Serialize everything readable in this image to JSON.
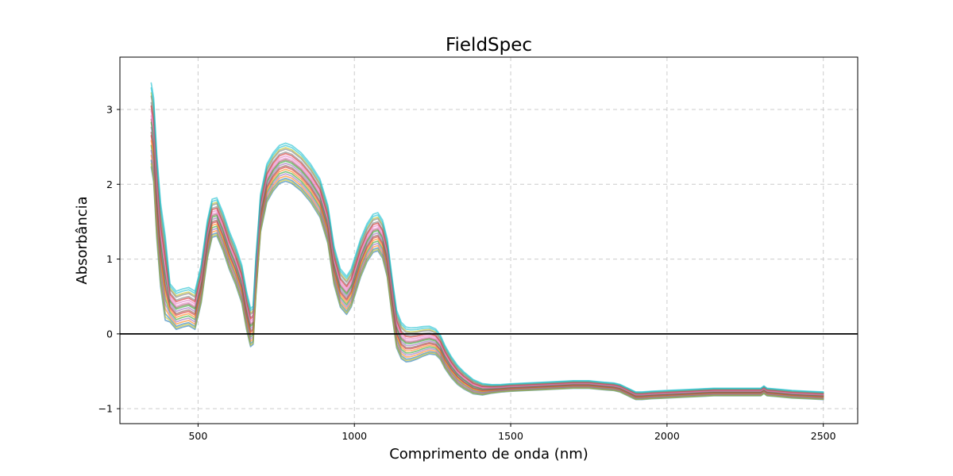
{
  "chart_data": {
    "type": "line",
    "title": "FieldSpec",
    "xlabel": "Comprimento de onda (nm)",
    "ylabel": "Absorbância",
    "xlim": [
      250,
      2610
    ],
    "ylim": [
      -1.2,
      3.7
    ],
    "xticks": [
      500,
      1000,
      1500,
      2000,
      2500
    ],
    "yticks": [
      -1,
      0,
      1,
      2,
      3
    ],
    "xtick_labels": [
      "500",
      "1000",
      "1500",
      "2000",
      "2500"
    ],
    "ytick_labels": [
      "−1",
      "0",
      "1",
      "2",
      "3"
    ],
    "grid": true,
    "reference_line_y": 0,
    "base_profile": {
      "x": [
        350,
        358,
        368,
        380,
        395,
        410,
        430,
        450,
        470,
        490,
        510,
        530,
        545,
        560,
        580,
        600,
        620,
        640,
        655,
        668,
        676,
        685,
        700,
        720,
        740,
        760,
        780,
        800,
        830,
        860,
        890,
        915,
        935,
        955,
        975,
        990,
        1005,
        1020,
        1040,
        1060,
        1075,
        1090,
        1105,
        1120,
        1135,
        1150,
        1165,
        1180,
        1200,
        1220,
        1240,
        1260,
        1275,
        1290,
        1310,
        1330,
        1350,
        1380,
        1410,
        1440,
        1470,
        1500,
        1550,
        1600,
        1650,
        1700,
        1750,
        1800,
        1830,
        1850,
        1870,
        1890,
        1900,
        1920,
        1950,
        2000,
        2050,
        2100,
        2150,
        2200,
        2250,
        2300,
        2310,
        2320,
        2350,
        2400,
        2450,
        2500
      ],
      "y": [
        2.65,
        2.45,
        1.7,
        1.05,
        0.6,
        0.35,
        0.25,
        0.28,
        0.3,
        0.25,
        0.6,
        1.2,
        1.48,
        1.5,
        1.3,
        1.05,
        0.85,
        0.6,
        0.25,
        0.02,
        0.05,
        0.7,
        1.55,
        1.95,
        2.1,
        2.2,
        2.23,
        2.2,
        2.1,
        1.95,
        1.75,
        1.4,
        0.85,
        0.55,
        0.45,
        0.55,
        0.75,
        0.95,
        1.15,
        1.28,
        1.3,
        1.2,
        0.95,
        0.45,
        0.0,
        -0.15,
        -0.2,
        -0.2,
        -0.18,
        -0.15,
        -0.13,
        -0.15,
        -0.22,
        -0.35,
        -0.48,
        -0.58,
        -0.65,
        -0.73,
        -0.76,
        -0.75,
        -0.74,
        -0.73,
        -0.72,
        -0.71,
        -0.7,
        -0.69,
        -0.69,
        -0.71,
        -0.72,
        -0.74,
        -0.78,
        -0.82,
        -0.84,
        -0.84,
        -0.83,
        -0.82,
        -0.81,
        -0.8,
        -0.79,
        -0.79,
        -0.79,
        -0.79,
        -0.76,
        -0.79,
        -0.8,
        -0.82,
        -0.83,
        -0.84
      ]
    },
    "series_offsets": [
      -0.19,
      -0.12,
      -0.06,
      0.0,
      0.05,
      0.1,
      0.15,
      0.2,
      0.26,
      0.32,
      -0.15,
      -0.03,
      0.08,
      0.18,
      -0.09,
      0.02,
      0.12,
      0.24,
      -0.17,
      0.29
    ],
    "colors": [
      "#1f77b4",
      "#ff7f0e",
      "#2ca02c",
      "#d62728",
      "#9467bd",
      "#8c564b",
      "#e377c2",
      "#7f7f7f",
      "#bcbd22",
      "#17becf"
    ]
  }
}
